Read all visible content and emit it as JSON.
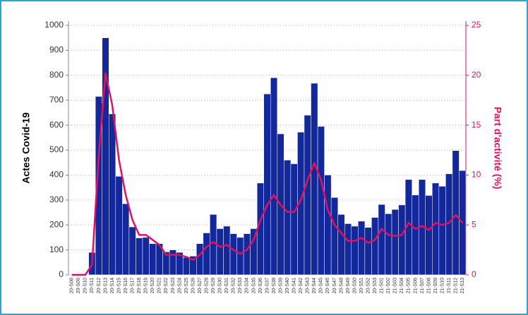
{
  "chart_data": {
    "type": "bar",
    "ylabel": "Actes Covid-19",
    "y2label": "Part d'activité (%)",
    "categories": [
      "20-S08",
      "20-S09",
      "20-S10",
      "20-S11",
      "20-S12",
      "20-S13",
      "20-S14",
      "20-S15",
      "20-S16",
      "20-S17",
      "20-S18",
      "20-S19",
      "20-S20",
      "20-S21",
      "20-S22",
      "20-S23",
      "20-S24",
      "20-S25",
      "20-S26",
      "20-S27",
      "20-S28",
      "20-S29",
      "20-S30",
      "20-S31",
      "20-S32",
      "20-S33",
      "20-S34",
      "20-S35",
      "20-S36",
      "20-S37",
      "20-S38",
      "20-S39",
      "20-S40",
      "20-S41",
      "20-S42",
      "20-S43",
      "20-S44",
      "20-S45",
      "20-S46",
      "20-S47",
      "20-S48",
      "20-S49",
      "20-S50",
      "20-S51",
      "20-S52",
      "20-S53",
      "21-S01",
      "21-S02",
      "21-S03",
      "21-S04",
      "21-S05",
      "21-S06",
      "21-S07",
      "21-S08",
      "21-S09",
      "21-S10",
      "21-S11",
      "21-S12",
      "21-S13"
    ],
    "series": [
      {
        "type": "bar",
        "color": "#13289a",
        "values": [
          0,
          0,
          0,
          90,
          715,
          950,
          645,
          395,
          285,
          192,
          148,
          150,
          125,
          125,
          92,
          100,
          90,
          70,
          75,
          125,
          168,
          242,
          185,
          195,
          165,
          150,
          165,
          185,
          368,
          725,
          790,
          565,
          460,
          445,
          572,
          640,
          768,
          595,
          400,
          310,
          242,
          205,
          195,
          215,
          190,
          230,
          282,
          245,
          262,
          280,
          382,
          320,
          382,
          318,
          368,
          355,
          405,
          498,
          418
        ]
      },
      {
        "type": "line",
        "axis": "y2",
        "color": "#e0115f",
        "values": [
          0,
          0,
          0,
          1,
          12,
          20.2,
          17,
          11.5,
          8,
          5.5,
          4,
          4,
          3.5,
          3,
          2,
          2,
          2,
          1.8,
          1.5,
          2,
          2.8,
          3.3,
          2.8,
          3,
          2.5,
          2.1,
          2.5,
          3.5,
          5.5,
          7,
          8,
          7,
          6.3,
          6.3,
          7.5,
          9.5,
          11.2,
          9.5,
          6.5,
          5,
          4.2,
          3.4,
          3.4,
          3.7,
          3.2,
          3.5,
          4.6,
          4,
          3.9,
          4,
          5.2,
          4.6,
          4.9,
          4.5,
          5.2,
          5,
          5.2,
          6,
          5.2
        ]
      }
    ],
    "ylim": [
      0,
      1000
    ],
    "yticks": [
      0,
      100,
      200,
      300,
      400,
      500,
      600,
      700,
      800,
      900,
      1000
    ],
    "y2lim": [
      0,
      25
    ],
    "y2ticks": [
      0,
      5,
      10,
      15,
      20,
      25
    ],
    "grid": true
  }
}
